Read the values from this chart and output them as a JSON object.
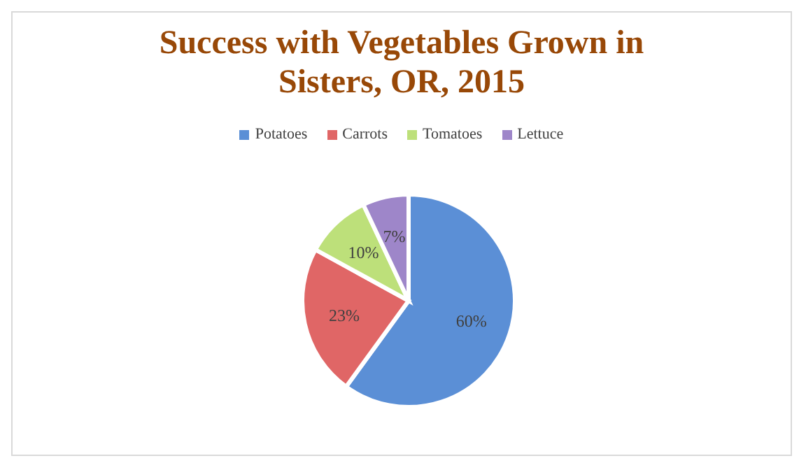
{
  "chart_data": {
    "type": "pie",
    "title": "Success with Vegetables Grown in Sisters, OR, 2015",
    "categories": [
      "Potatoes",
      "Carrots",
      "Tomatoes",
      "Lettuce"
    ],
    "values": [
      60,
      23,
      10,
      7
    ],
    "value_labels": [
      "60%",
      "23%",
      "10%",
      "7%"
    ],
    "colors": [
      "#5b8fd6",
      "#e06666",
      "#bde07a",
      "#9e86c9"
    ],
    "legend": "top"
  }
}
